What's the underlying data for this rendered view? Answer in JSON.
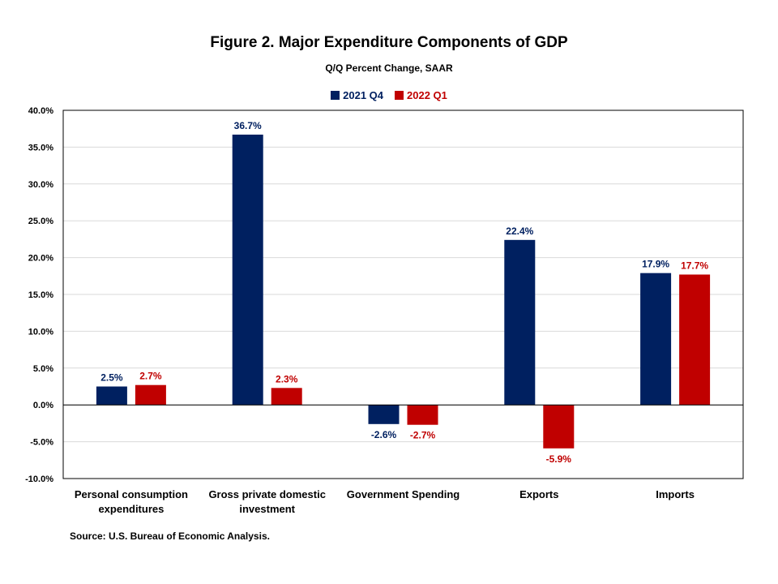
{
  "chart_data": {
    "type": "bar",
    "title": "Figure 2. Major Expenditure Components of GDP",
    "subtitle": "Q/Q Percent Change, SAAR",
    "categories": [
      [
        "Personal consumption",
        "expenditures"
      ],
      [
        "Gross private domestic",
        "investment"
      ],
      [
        "Government Spending"
      ],
      [
        "Exports"
      ],
      [
        "Imports"
      ]
    ],
    "series": [
      {
        "name": "2021 Q4",
        "color": "#002060",
        "values": [
          2.5,
          36.7,
          -2.6,
          22.4,
          17.9
        ],
        "labels": [
          "2.5%",
          "36.7%",
          "-2.6%",
          "22.4%",
          "17.9%"
        ]
      },
      {
        "name": "2022 Q1",
        "color": "#C00000",
        "values": [
          2.7,
          2.3,
          -2.7,
          -5.9,
          17.7
        ],
        "labels": [
          "2.7%",
          "2.3%",
          "-2.7%",
          "-5.9%",
          "17.7%"
        ]
      }
    ],
    "ylim": [
      -10,
      40
    ],
    "yticks": [
      40,
      35,
      30,
      25,
      20,
      15,
      10,
      5,
      0,
      -5,
      -10
    ],
    "ytick_labels": [
      "40.0%",
      "35.0%",
      "30.0%",
      "25.0%",
      "20.0%",
      "15.0%",
      "10.0%",
      "5.0%",
      "0.0%",
      "-5.0%",
      "-10.0%"
    ],
    "grid": true,
    "legend_position": "top-center"
  },
  "source": "Source: U.S. Bureau of Economic Analysis."
}
